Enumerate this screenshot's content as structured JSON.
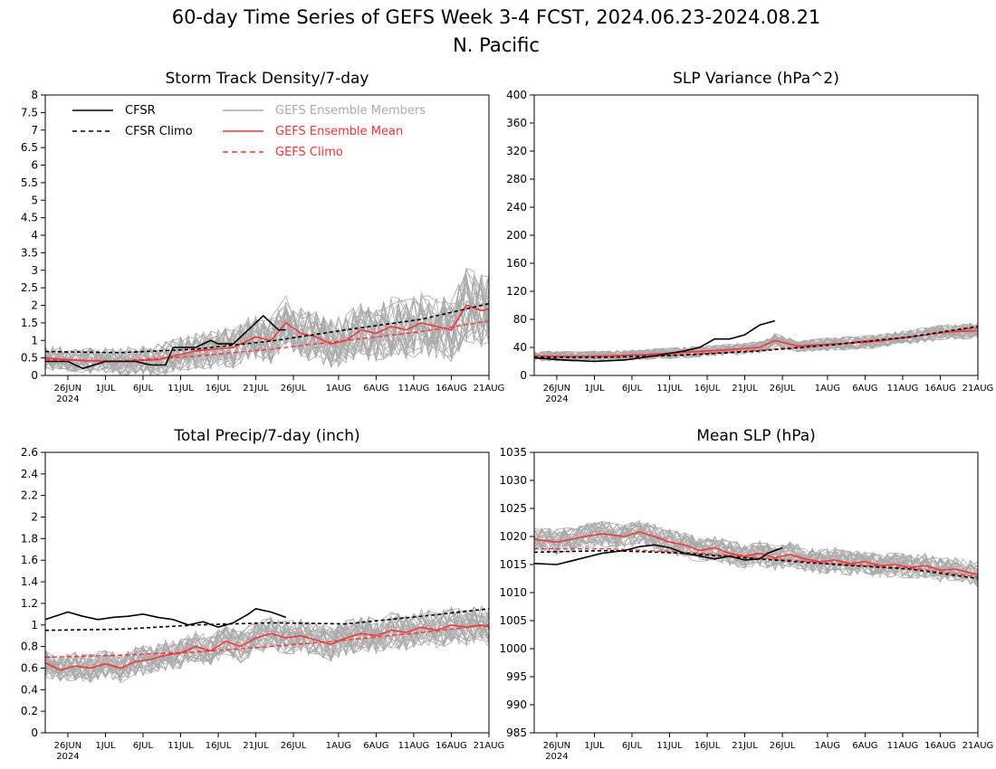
{
  "title": {
    "line1": "60-day Time Series of GEFS Week 3-4 FCST, 2024.06.23-2024.08.21",
    "line2": "N. Pacific"
  },
  "colors": {
    "cfsr": "#000000",
    "ensemble_members": "#aaaaaa",
    "ensemble_mean": "#ff3333"
  },
  "legend": {
    "cfsr": "CFSR",
    "cfsr_climo": "CFSR Climo",
    "members": "GEFS Ensemble Members",
    "mean": "GEFS Ensemble Mean",
    "gefs_climo": "GEFS Climo"
  },
  "x_axis": {
    "year_label": "2024",
    "tick_labels": [
      "26JUN",
      "1JUL",
      "6JUL",
      "11JUL",
      "16JUL",
      "21JUL",
      "26JUL",
      "1AUG",
      "6AUG",
      "11AUG",
      "16AUG",
      "21AUG"
    ]
  },
  "chart_data": [
    {
      "type": "line",
      "title": "Storm Track Density/7-day",
      "x": [
        "2024-06-23",
        "2024-08-21"
      ],
      "ylim": [
        0,
        8
      ],
      "yticks": [
        "0",
        "0.5",
        "1",
        "1.5",
        "2",
        "2.5",
        "3",
        "3.5",
        "4",
        "4.5",
        "5",
        "5.5",
        "6",
        "6.5",
        "7",
        "7.5",
        "8"
      ],
      "ensemble_members": 30,
      "legend_position": "top-left",
      "series": [
        {
          "name": "CFSR",
          "points": [
            [
              0,
              0.4
            ],
            [
              3,
              0.4
            ],
            [
              5,
              0.2
            ],
            [
              8,
              0.4
            ],
            [
              12,
              0.4
            ],
            [
              14,
              0.3
            ],
            [
              16,
              0.3
            ],
            [
              17,
              0.8
            ],
            [
              20,
              0.8
            ],
            [
              22,
              1.0
            ],
            [
              23,
              0.9
            ],
            [
              25,
              0.9
            ],
            [
              27,
              1.3
            ],
            [
              29,
              1.7
            ],
            [
              31,
              1.3
            ],
            [
              32,
              1.3
            ]
          ]
        },
        {
          "name": "CFSR Climo",
          "points": [
            [
              0,
              0.68
            ],
            [
              10,
              0.65
            ],
            [
              20,
              0.75
            ],
            [
              30,
              0.98
            ],
            [
              40,
              1.3
            ],
            [
              50,
              1.6
            ],
            [
              59,
              2.05
            ]
          ]
        },
        {
          "name": "GEFS Ensemble Mean",
          "points": [
            [
              0,
              0.5
            ],
            [
              5,
              0.42
            ],
            [
              10,
              0.4
            ],
            [
              15,
              0.45
            ],
            [
              20,
              0.7
            ],
            [
              25,
              0.8
            ],
            [
              28,
              1.1
            ],
            [
              30,
              1.0
            ],
            [
              32,
              1.5
            ],
            [
              34,
              1.2
            ],
            [
              36,
              1.1
            ],
            [
              38,
              0.9
            ],
            [
              40,
              1.0
            ],
            [
              42,
              1.3
            ],
            [
              44,
              1.2
            ],
            [
              46,
              1.4
            ],
            [
              48,
              1.3
            ],
            [
              50,
              1.5
            ],
            [
              52,
              1.4
            ],
            [
              54,
              1.3
            ],
            [
              56,
              2.0
            ],
            [
              58,
              1.85
            ],
            [
              59,
              1.9
            ]
          ]
        },
        {
          "name": "GEFS Climo",
          "points": [
            [
              0,
              0.45
            ],
            [
              10,
              0.42
            ],
            [
              20,
              0.55
            ],
            [
              30,
              0.75
            ],
            [
              40,
              1.0
            ],
            [
              50,
              1.25
            ],
            [
              59,
              1.55
            ]
          ]
        }
      ]
    },
    {
      "type": "line",
      "title": "SLP Variance (hPa^2)",
      "x": [
        "2024-06-23",
        "2024-08-21"
      ],
      "ylim": [
        0,
        400
      ],
      "yticks": [
        "0",
        "40",
        "80",
        "120",
        "160",
        "200",
        "240",
        "280",
        "320",
        "360",
        "400"
      ],
      "ensemble_members": 30,
      "series": [
        {
          "name": "CFSR",
          "points": [
            [
              0,
              25
            ],
            [
              4,
              22
            ],
            [
              8,
              20
            ],
            [
              12,
              22
            ],
            [
              16,
              28
            ],
            [
              20,
              35
            ],
            [
              22,
              40
            ],
            [
              24,
              52
            ],
            [
              26,
              52
            ],
            [
              28,
              58
            ],
            [
              29,
              65
            ],
            [
              30,
              72
            ],
            [
              31,
              75
            ],
            [
              32,
              78
            ]
          ]
        },
        {
          "name": "CFSR Climo",
          "points": [
            [
              0,
              26
            ],
            [
              10,
              26
            ],
            [
              20,
              29
            ],
            [
              30,
              35
            ],
            [
              40,
              44
            ],
            [
              50,
              55
            ],
            [
              59,
              70
            ]
          ]
        },
        {
          "name": "GEFS Ensemble Mean",
          "points": [
            [
              0,
              28
            ],
            [
              5,
              27
            ],
            [
              10,
              28
            ],
            [
              15,
              30
            ],
            [
              20,
              33
            ],
            [
              25,
              36
            ],
            [
              30,
              40
            ],
            [
              32,
              50
            ],
            [
              35,
              42
            ],
            [
              40,
              45
            ],
            [
              45,
              48
            ],
            [
              50,
              55
            ],
            [
              55,
              62
            ],
            [
              59,
              64
            ]
          ]
        },
        {
          "name": "GEFS Climo",
          "points": [
            [
              0,
              27
            ],
            [
              10,
              27
            ],
            [
              20,
              30
            ],
            [
              30,
              36
            ],
            [
              40,
              45
            ],
            [
              50,
              55
            ],
            [
              59,
              68
            ]
          ]
        }
      ]
    },
    {
      "type": "line",
      "title": "Total Precip/7-day (inch)",
      "x": [
        "2024-06-23",
        "2024-08-21"
      ],
      "ylim": [
        0,
        2.6
      ],
      "yticks": [
        "0",
        "0.2",
        "0.4",
        "0.6",
        "0.8",
        "1",
        "1.2",
        "1.4",
        "1.6",
        "1.8",
        "2",
        "2.2",
        "2.4",
        "2.6"
      ],
      "ensemble_members": 30,
      "series": [
        {
          "name": "CFSR",
          "points": [
            [
              0,
              1.05
            ],
            [
              3,
              1.12
            ],
            [
              5,
              1.08
            ],
            [
              7,
              1.05
            ],
            [
              9,
              1.07
            ],
            [
              11,
              1.08
            ],
            [
              13,
              1.1
            ],
            [
              15,
              1.07
            ],
            [
              17,
              1.05
            ],
            [
              19,
              1.0
            ],
            [
              21,
              1.03
            ],
            [
              23,
              0.98
            ],
            [
              25,
              1.02
            ],
            [
              27,
              1.1
            ],
            [
              28,
              1.15
            ],
            [
              30,
              1.12
            ],
            [
              32,
              1.07
            ]
          ]
        },
        {
          "name": "CFSR Climo",
          "points": [
            [
              0,
              0.95
            ],
            [
              10,
              0.96
            ],
            [
              20,
              1.0
            ],
            [
              30,
              1.02
            ],
            [
              40,
              1.01
            ],
            [
              50,
              1.08
            ],
            [
              59,
              1.15
            ]
          ]
        },
        {
          "name": "GEFS Ensemble Mean",
          "points": [
            [
              0,
              0.65
            ],
            [
              2,
              0.58
            ],
            [
              4,
              0.62
            ],
            [
              6,
              0.6
            ],
            [
              8,
              0.64
            ],
            [
              10,
              0.6
            ],
            [
              12,
              0.66
            ],
            [
              14,
              0.68
            ],
            [
              16,
              0.72
            ],
            [
              18,
              0.74
            ],
            [
              20,
              0.8
            ],
            [
              22,
              0.76
            ],
            [
              24,
              0.85
            ],
            [
              26,
              0.8
            ],
            [
              28,
              0.88
            ],
            [
              30,
              0.92
            ],
            [
              32,
              0.88
            ],
            [
              34,
              0.9
            ],
            [
              36,
              0.86
            ],
            [
              38,
              0.82
            ],
            [
              40,
              0.88
            ],
            [
              42,
              0.92
            ],
            [
              44,
              0.9
            ],
            [
              46,
              0.95
            ],
            [
              48,
              0.93
            ],
            [
              50,
              0.98
            ],
            [
              52,
              0.95
            ],
            [
              54,
              1.0
            ],
            [
              56,
              0.98
            ],
            [
              58,
              1.0
            ],
            [
              59,
              0.98
            ]
          ]
        },
        {
          "name": "GEFS Climo",
          "points": [
            [
              0,
              0.7
            ],
            [
              10,
              0.72
            ],
            [
              20,
              0.75
            ],
            [
              30,
              0.8
            ],
            [
              40,
              0.86
            ],
            [
              50,
              0.93
            ],
            [
              59,
              1.0
            ]
          ]
        }
      ]
    },
    {
      "type": "line",
      "title": "Mean SLP (hPa)",
      "x": [
        "2024-06-23",
        "2024-08-21"
      ],
      "ylim": [
        985,
        1035
      ],
      "yticks": [
        "985",
        "990",
        "995",
        "1000",
        "1005",
        "1010",
        "1015",
        "1020",
        "1025",
        "1030",
        "1035"
      ],
      "ensemble_members": 30,
      "series": [
        {
          "name": "CFSR",
          "points": [
            [
              0,
              1015.2
            ],
            [
              3,
              1015.0
            ],
            [
              6,
              1016.0
            ],
            [
              9,
              1017.0
            ],
            [
              12,
              1017.5
            ],
            [
              14,
              1018.2
            ],
            [
              16,
              1018.5
            ],
            [
              18,
              1018.0
            ],
            [
              20,
              1017.0
            ],
            [
              22,
              1016.5
            ],
            [
              24,
              1016.0
            ],
            [
              26,
              1016.5
            ],
            [
              28,
              1015.8
            ],
            [
              30,
              1016.0
            ],
            [
              31,
              1017.0
            ],
            [
              33,
              1018.0
            ]
          ]
        },
        {
          "name": "CFSR Climo",
          "points": [
            [
              0,
              1017.2
            ],
            [
              10,
              1017.5
            ],
            [
              20,
              1017.0
            ],
            [
              30,
              1016.0
            ],
            [
              40,
              1015.0
            ],
            [
              50,
              1014.2
            ],
            [
              59,
              1012.5
            ]
          ]
        },
        {
          "name": "GEFS Ensemble Mean",
          "points": [
            [
              0,
              1019.5
            ],
            [
              3,
              1019.0
            ],
            [
              6,
              1019.8
            ],
            [
              9,
              1020.5
            ],
            [
              12,
              1020.0
            ],
            [
              14,
              1020.8
            ],
            [
              16,
              1020.0
            ],
            [
              18,
              1019.0
            ],
            [
              20,
              1018.5
            ],
            [
              22,
              1017.5
            ],
            [
              24,
              1018.0
            ],
            [
              26,
              1017.0
            ],
            [
              28,
              1016.5
            ],
            [
              30,
              1017.0
            ],
            [
              32,
              1016.2
            ],
            [
              34,
              1016.8
            ],
            [
              36,
              1016.0
            ],
            [
              38,
              1015.5
            ],
            [
              40,
              1015.8
            ],
            [
              42,
              1015.2
            ],
            [
              44,
              1015.5
            ],
            [
              46,
              1014.8
            ],
            [
              48,
              1015.0
            ],
            [
              50,
              1014.5
            ],
            [
              52,
              1014.8
            ],
            [
              54,
              1014.0
            ],
            [
              56,
              1014.2
            ],
            [
              58,
              1013.5
            ],
            [
              59,
              1013.2
            ]
          ]
        },
        {
          "name": "GEFS Climo",
          "points": [
            [
              0,
              1017.8
            ],
            [
              10,
              1017.8
            ],
            [
              20,
              1017.2
            ],
            [
              30,
              1016.2
            ],
            [
              40,
              1015.2
            ],
            [
              50,
              1014.4
            ],
            [
              59,
              1012.8
            ]
          ]
        }
      ]
    }
  ]
}
